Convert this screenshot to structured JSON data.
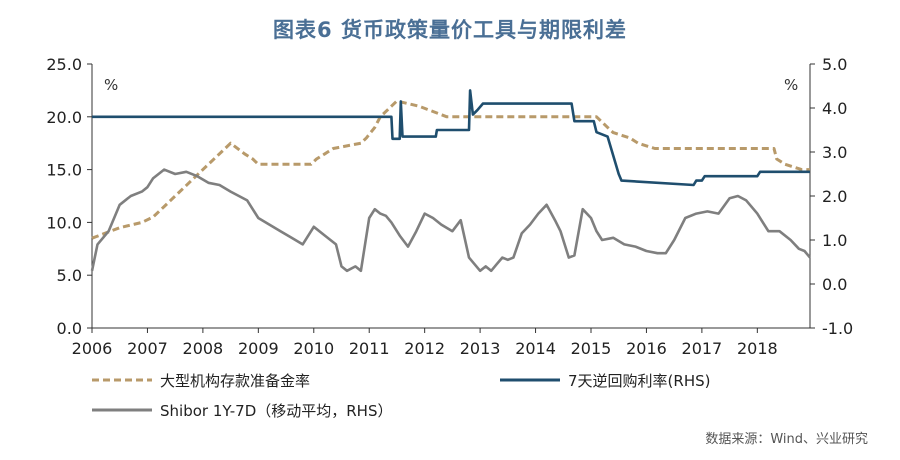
{
  "title": "图表6  货币政策量价工具与期限利差",
  "source": "数据来源：Wind、兴业研究",
  "chart_data": {
    "type": "line",
    "title": "图表6  货币政策量价工具与期限利差",
    "left_axis": {
      "unit": "%",
      "ylim": [
        0,
        25
      ],
      "ticks": [
        "0.0",
        "5.0",
        "10.0",
        "15.0",
        "20.0",
        "25.0"
      ]
    },
    "right_axis": {
      "unit": "%",
      "ylim": [
        -1,
        5
      ],
      "ticks": [
        "-1.0",
        "0.0",
        "1.0",
        "2.0",
        "3.0",
        "4.0",
        "5.0"
      ]
    },
    "x_ticks": [
      "2006",
      "2007",
      "2008",
      "2009",
      "2010",
      "2011",
      "2012",
      "2013",
      "2014",
      "2015",
      "2016",
      "2017",
      "2018"
    ],
    "xlim": [
      2006,
      2018.95
    ],
    "legend_position": "bottom",
    "grid": false,
    "series": [
      {
        "name": "大型机构存款准备金率",
        "axis": "left",
        "color": "#b89a6a",
        "style": "dashed",
        "points": [
          [
            2006.0,
            8.5
          ],
          [
            2006.5,
            9.5
          ],
          [
            2006.9,
            10.0
          ],
          [
            2007.1,
            10.5
          ],
          [
            2007.3,
            11.5
          ],
          [
            2007.5,
            12.5
          ],
          [
            2007.7,
            13.5
          ],
          [
            2007.9,
            14.5
          ],
          [
            2008.1,
            15.5
          ],
          [
            2008.4,
            17.0
          ],
          [
            2008.5,
            17.5
          ],
          [
            2008.75,
            16.5
          ],
          [
            2008.9,
            16.0
          ],
          [
            2009.0,
            15.5
          ],
          [
            2009.95,
            15.5
          ],
          [
            2010.05,
            16.0
          ],
          [
            2010.2,
            16.5
          ],
          [
            2010.35,
            17.0
          ],
          [
            2010.85,
            17.5
          ],
          [
            2010.95,
            18.0
          ],
          [
            2011.1,
            19.0
          ],
          [
            2011.2,
            20.0
          ],
          [
            2011.4,
            21.0
          ],
          [
            2011.5,
            21.5
          ],
          [
            2011.9,
            21.0
          ],
          [
            2012.15,
            20.5
          ],
          [
            2012.4,
            20.0
          ],
          [
            2015.1,
            20.0
          ],
          [
            2015.3,
            19.0
          ],
          [
            2015.4,
            18.5
          ],
          [
            2015.7,
            18.0
          ],
          [
            2015.85,
            17.5
          ],
          [
            2016.15,
            17.0
          ],
          [
            2018.3,
            17.0
          ],
          [
            2018.35,
            16.0
          ],
          [
            2018.5,
            15.5
          ],
          [
            2018.8,
            15.0
          ],
          [
            2018.95,
            15.0
          ]
        ]
      },
      {
        "name": "7天逆回购利率(RHS)",
        "axis": "right",
        "color": "#1f4e6e",
        "style": "solid",
        "points": [
          [
            2006.0,
            3.8
          ],
          [
            2011.4,
            3.8
          ],
          [
            2011.42,
            3.3
          ],
          [
            2011.55,
            3.3
          ],
          [
            2011.57,
            4.15
          ],
          [
            2011.6,
            3.35
          ],
          [
            2012.2,
            3.35
          ],
          [
            2012.22,
            3.5
          ],
          [
            2012.8,
            3.5
          ],
          [
            2012.82,
            4.4
          ],
          [
            2012.87,
            3.85
          ],
          [
            2012.95,
            3.95
          ],
          [
            2013.05,
            4.1
          ],
          [
            2014.65,
            4.1
          ],
          [
            2014.7,
            3.7
          ],
          [
            2015.05,
            3.7
          ],
          [
            2015.1,
            3.45
          ],
          [
            2015.3,
            3.35
          ],
          [
            2015.5,
            2.5
          ],
          [
            2015.55,
            2.35
          ],
          [
            2016.85,
            2.25
          ],
          [
            2016.9,
            2.35
          ],
          [
            2017.0,
            2.35
          ],
          [
            2017.05,
            2.45
          ],
          [
            2018.0,
            2.45
          ],
          [
            2018.05,
            2.55
          ],
          [
            2018.95,
            2.55
          ]
        ]
      },
      {
        "name": "Shibor 1Y-7D（移动平均，RHS）",
        "axis": "right",
        "color": "#7f7f7f",
        "style": "solid",
        "points": [
          [
            2006.0,
            0.3
          ],
          [
            2006.1,
            0.9
          ],
          [
            2006.3,
            1.2
          ],
          [
            2006.5,
            1.8
          ],
          [
            2006.7,
            2.0
          ],
          [
            2006.9,
            2.1
          ],
          [
            2007.0,
            2.2
          ],
          [
            2007.1,
            2.4
          ],
          [
            2007.3,
            2.6
          ],
          [
            2007.5,
            2.5
          ],
          [
            2007.7,
            2.55
          ],
          [
            2007.9,
            2.45
          ],
          [
            2008.1,
            2.3
          ],
          [
            2008.3,
            2.25
          ],
          [
            2008.5,
            2.1
          ],
          [
            2008.8,
            1.9
          ],
          [
            2009.0,
            1.5
          ],
          [
            2009.2,
            1.35
          ],
          [
            2009.4,
            1.2
          ],
          [
            2009.6,
            1.05
          ],
          [
            2009.8,
            0.9
          ],
          [
            2010.0,
            1.3
          ],
          [
            2010.2,
            1.1
          ],
          [
            2010.4,
            0.9
          ],
          [
            2010.5,
            0.4
          ],
          [
            2010.6,
            0.3
          ],
          [
            2010.75,
            0.4
          ],
          [
            2010.85,
            0.3
          ],
          [
            2011.0,
            1.5
          ],
          [
            2011.1,
            1.7
          ],
          [
            2011.2,
            1.6
          ],
          [
            2011.3,
            1.55
          ],
          [
            2011.4,
            1.4
          ],
          [
            2011.55,
            1.1
          ],
          [
            2011.7,
            0.85
          ],
          [
            2011.85,
            1.2
          ],
          [
            2012.0,
            1.6
          ],
          [
            2012.15,
            1.5
          ],
          [
            2012.3,
            1.35
          ],
          [
            2012.5,
            1.2
          ],
          [
            2012.65,
            1.45
          ],
          [
            2012.8,
            0.6
          ],
          [
            2013.0,
            0.3
          ],
          [
            2013.1,
            0.4
          ],
          [
            2013.2,
            0.3
          ],
          [
            2013.3,
            0.45
          ],
          [
            2013.4,
            0.6
          ],
          [
            2013.5,
            0.55
          ],
          [
            2013.6,
            0.6
          ],
          [
            2013.75,
            1.15
          ],
          [
            2013.9,
            1.35
          ],
          [
            2014.05,
            1.6
          ],
          [
            2014.2,
            1.8
          ],
          [
            2014.35,
            1.45
          ],
          [
            2014.45,
            1.2
          ],
          [
            2014.6,
            0.6
          ],
          [
            2014.7,
            0.65
          ],
          [
            2014.85,
            1.7
          ],
          [
            2015.0,
            1.5
          ],
          [
            2015.1,
            1.2
          ],
          [
            2015.2,
            1.0
          ],
          [
            2015.4,
            1.05
          ],
          [
            2015.6,
            0.9
          ],
          [
            2015.8,
            0.85
          ],
          [
            2016.0,
            0.75
          ],
          [
            2016.2,
            0.7
          ],
          [
            2016.35,
            0.7
          ],
          [
            2016.5,
            1.0
          ],
          [
            2016.7,
            1.5
          ],
          [
            2016.9,
            1.6
          ],
          [
            2017.1,
            1.65
          ],
          [
            2017.3,
            1.6
          ],
          [
            2017.5,
            1.95
          ],
          [
            2017.65,
            2.0
          ],
          [
            2017.8,
            1.9
          ],
          [
            2018.0,
            1.6
          ],
          [
            2018.2,
            1.2
          ],
          [
            2018.4,
            1.2
          ],
          [
            2018.6,
            1.0
          ],
          [
            2018.75,
            0.8
          ],
          [
            2018.85,
            0.75
          ],
          [
            2018.95,
            0.6
          ]
        ]
      }
    ]
  }
}
